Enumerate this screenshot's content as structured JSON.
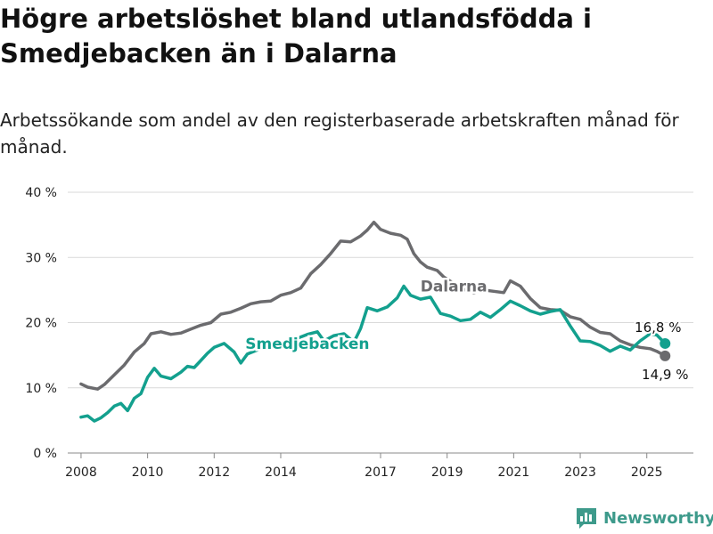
{
  "title": "Högre arbetslöshet bland utlandsfödda i Smedjebacken än i Dalarna",
  "subtitle": "Arbetssökande som andel av den registerbaserade arbetskraften månad för månad.",
  "brand": {
    "name": "Newsworthy"
  },
  "colors": {
    "smedjebacken": "#13a08e",
    "dalarna": "#6b6b6e",
    "grid": "#d9d9d9",
    "brand": "#3d9a8b"
  },
  "chart_data": {
    "type": "line",
    "x_ticks": [
      "2008",
      "2010",
      "2012",
      "2014",
      "2017",
      "2019",
      "2021",
      "2023",
      "2025"
    ],
    "y_ticks": [
      "0 %",
      "10 %",
      "20 %",
      "30 %",
      "40 %"
    ],
    "ylim": [
      0,
      40
    ],
    "xlim": [
      2007.6,
      2026.4
    ],
    "grid": true,
    "series": [
      {
        "name": "Dalarna",
        "color": "#6b6b6e",
        "end_label": "14,9 %",
        "points": [
          [
            2008.0,
            10.6
          ],
          [
            2008.2,
            10.1
          ],
          [
            2008.5,
            9.8
          ],
          [
            2008.7,
            10.5
          ],
          [
            2009.0,
            12.0
          ],
          [
            2009.3,
            13.5
          ],
          [
            2009.6,
            15.5
          ],
          [
            2009.9,
            16.8
          ],
          [
            2010.1,
            18.3
          ],
          [
            2010.4,
            18.6
          ],
          [
            2010.7,
            18.2
          ],
          [
            2011.0,
            18.4
          ],
          [
            2011.3,
            19.0
          ],
          [
            2011.6,
            19.6
          ],
          [
            2011.9,
            20.0
          ],
          [
            2012.2,
            21.3
          ],
          [
            2012.5,
            21.6
          ],
          [
            2012.8,
            22.2
          ],
          [
            2013.1,
            22.9
          ],
          [
            2013.4,
            23.2
          ],
          [
            2013.7,
            23.3
          ],
          [
            2014.0,
            24.2
          ],
          [
            2014.3,
            24.6
          ],
          [
            2014.6,
            25.3
          ],
          [
            2014.9,
            27.5
          ],
          [
            2015.2,
            28.9
          ],
          [
            2015.5,
            30.6
          ],
          [
            2015.8,
            32.5
          ],
          [
            2016.1,
            32.4
          ],
          [
            2016.4,
            33.3
          ],
          [
            2016.6,
            34.2
          ],
          [
            2016.8,
            35.4
          ],
          [
            2017.0,
            34.3
          ],
          [
            2017.3,
            33.7
          ],
          [
            2017.6,
            33.4
          ],
          [
            2017.8,
            32.8
          ],
          [
            2018.0,
            30.6
          ],
          [
            2018.2,
            29.3
          ],
          [
            2018.4,
            28.5
          ],
          [
            2018.7,
            28.0
          ],
          [
            2018.9,
            27.0
          ],
          [
            2019.2,
            26.0
          ],
          [
            2019.5,
            25.1
          ],
          [
            2019.8,
            24.6
          ],
          [
            2020.1,
            25.0
          ],
          [
            2020.4,
            24.8
          ],
          [
            2020.7,
            24.6
          ],
          [
            2020.9,
            26.4
          ],
          [
            2021.2,
            25.6
          ],
          [
            2021.5,
            23.7
          ],
          [
            2021.8,
            22.3
          ],
          [
            2022.1,
            22.0
          ],
          [
            2022.4,
            21.9
          ],
          [
            2022.7,
            20.9
          ],
          [
            2023.0,
            20.5
          ],
          [
            2023.3,
            19.3
          ],
          [
            2023.6,
            18.5
          ],
          [
            2023.9,
            18.3
          ],
          [
            2024.2,
            17.2
          ],
          [
            2024.5,
            16.6
          ],
          [
            2024.8,
            16.2
          ],
          [
            2025.1,
            16.0
          ],
          [
            2025.3,
            15.6
          ],
          [
            2025.55,
            14.9
          ]
        ]
      },
      {
        "name": "Smedjebacken",
        "color": "#13a08e",
        "end_label": "16,8 %",
        "points": [
          [
            2008.0,
            5.5
          ],
          [
            2008.2,
            5.7
          ],
          [
            2008.4,
            4.9
          ],
          [
            2008.6,
            5.4
          ],
          [
            2008.8,
            6.2
          ],
          [
            2009.0,
            7.2
          ],
          [
            2009.2,
            7.6
          ],
          [
            2009.4,
            6.5
          ],
          [
            2009.6,
            8.4
          ],
          [
            2009.8,
            9.1
          ],
          [
            2010.0,
            11.6
          ],
          [
            2010.2,
            13.0
          ],
          [
            2010.4,
            11.8
          ],
          [
            2010.7,
            11.4
          ],
          [
            2011.0,
            12.4
          ],
          [
            2011.2,
            13.3
          ],
          [
            2011.4,
            13.1
          ],
          [
            2011.6,
            14.2
          ],
          [
            2011.8,
            15.3
          ],
          [
            2012.0,
            16.2
          ],
          [
            2012.3,
            16.8
          ],
          [
            2012.6,
            15.5
          ],
          [
            2012.8,
            13.8
          ],
          [
            2013.0,
            15.2
          ],
          [
            2013.3,
            15.8
          ],
          [
            2013.6,
            16.9
          ],
          [
            2013.9,
            17.1
          ],
          [
            2014.2,
            16.6
          ],
          [
            2014.5,
            17.6
          ],
          [
            2014.8,
            18.2
          ],
          [
            2015.1,
            18.6
          ],
          [
            2015.3,
            17.2
          ],
          [
            2015.6,
            18.0
          ],
          [
            2015.9,
            18.3
          ],
          [
            2016.2,
            17.0
          ],
          [
            2016.4,
            19.1
          ],
          [
            2016.6,
            22.3
          ],
          [
            2016.9,
            21.8
          ],
          [
            2017.2,
            22.4
          ],
          [
            2017.5,
            23.8
          ],
          [
            2017.7,
            25.6
          ],
          [
            2017.9,
            24.2
          ],
          [
            2018.2,
            23.6
          ],
          [
            2018.5,
            23.9
          ],
          [
            2018.8,
            21.4
          ],
          [
            2019.1,
            21.0
          ],
          [
            2019.4,
            20.3
          ],
          [
            2019.7,
            20.5
          ],
          [
            2020.0,
            21.6
          ],
          [
            2020.3,
            20.8
          ],
          [
            2020.6,
            22.0
          ],
          [
            2020.9,
            23.3
          ],
          [
            2021.2,
            22.6
          ],
          [
            2021.5,
            21.8
          ],
          [
            2021.8,
            21.3
          ],
          [
            2022.1,
            21.7
          ],
          [
            2022.4,
            22.0
          ],
          [
            2022.7,
            19.5
          ],
          [
            2023.0,
            17.2
          ],
          [
            2023.3,
            17.1
          ],
          [
            2023.6,
            16.5
          ],
          [
            2023.9,
            15.6
          ],
          [
            2024.2,
            16.4
          ],
          [
            2024.5,
            15.8
          ],
          [
            2024.8,
            17.2
          ],
          [
            2025.1,
            18.3
          ],
          [
            2025.3,
            18.1
          ],
          [
            2025.55,
            16.8
          ]
        ]
      }
    ],
    "series_labels": [
      {
        "series": "Dalarna",
        "text": "Dalarna"
      },
      {
        "series": "Smedjebacken",
        "text": "Smedjebacken"
      }
    ]
  }
}
